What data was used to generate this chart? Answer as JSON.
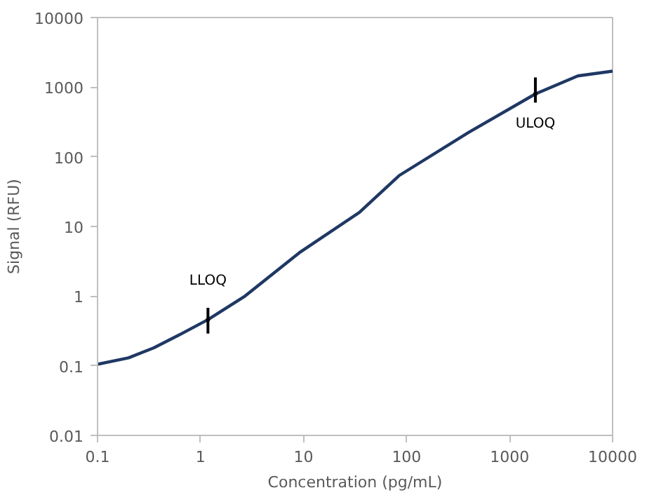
{
  "chart_data": {
    "type": "line",
    "xlabel": "Concentration (pg/mL)",
    "ylabel": "Signal (RFU)",
    "log": "xy",
    "grid": false,
    "marker": "none",
    "line_style": "solid",
    "xlim": [
      0.1,
      10000
    ],
    "ylim": [
      0.01,
      10000
    ],
    "xticks": [
      0.1,
      1,
      10,
      100,
      1000,
      10000
    ],
    "yticks": [
      0.01,
      0.1,
      1,
      10,
      100,
      1000,
      10000
    ],
    "series": [
      {
        "color": "#1f3864",
        "x": [
          0.1,
          0.2,
          0.35,
          0.6,
          1.18,
          2.7,
          9.1,
          35,
          85,
          400,
          1780,
          4600,
          10000
        ],
        "values": [
          0.105,
          0.13,
          0.18,
          0.27,
          0.46,
          1.0,
          4.2,
          16,
          54,
          224,
          800,
          1450,
          1700
        ]
      },
      {
        "type": "scatter",
        "color": "#000000",
        "x": [
          1.18,
          1780
        ],
        "values": [
          0.46,
          800
        ],
        "errors": [
          [
            0.29,
            0.68
          ],
          [
            600,
            1380
          ]
        ]
      }
    ],
    "annotations": [
      {
        "text": "LLOQ",
        "x": 1.18,
        "y": 0.46
      },
      {
        "text": "ULOQ",
        "x": 1780,
        "y": 800
      }
    ]
  }
}
